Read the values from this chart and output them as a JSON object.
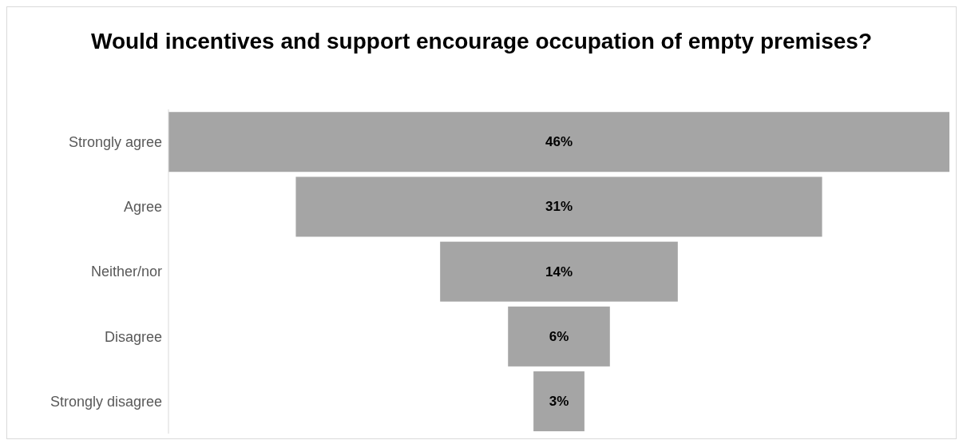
{
  "chart_data": {
    "type": "other",
    "title": "Would incentives and support encourage occupation of empty premises?",
    "categories": [
      "Strongly agree",
      "Agree",
      "Neither/nor",
      "Disagree",
      "Strongly disagree"
    ],
    "values": [
      46,
      31,
      14,
      6,
      3
    ],
    "value_labels": [
      "46%",
      "31%",
      "14%",
      "6%",
      "3%"
    ],
    "color": "#a5a5a5"
  }
}
